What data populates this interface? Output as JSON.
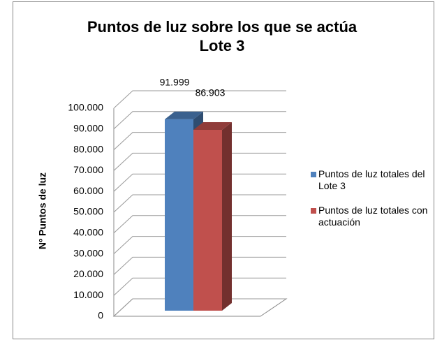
{
  "chart_data": {
    "type": "bar3d",
    "title": [
      "Puntos de luz sobre los que se actúa",
      "Lote 3"
    ],
    "y_label": "Nº Puntos de luz",
    "categories": [
      null
    ],
    "series": [
      {
        "name": "Puntos de luz totales del Lote 3",
        "color": "#4f81bd",
        "values": [
          91999
        ],
        "value_labels": [
          "91.999"
        ]
      },
      {
        "name": "Puntos de luz totales con actuación",
        "color": "#c0504d",
        "values": [
          86903
        ],
        "value_labels": [
          "86.903"
        ]
      }
    ],
    "ylim": [
      0,
      100000
    ],
    "yticks": [
      {
        "value": 0,
        "label": "0"
      },
      {
        "value": 10000,
        "label": "10.000"
      },
      {
        "value": 20000,
        "label": "20.000"
      },
      {
        "value": 30000,
        "label": "30.000"
      },
      {
        "value": 40000,
        "label": "40.000"
      },
      {
        "value": 50000,
        "label": "50.000"
      },
      {
        "value": 60000,
        "label": "60.000"
      },
      {
        "value": 70000,
        "label": "70.000"
      },
      {
        "value": 80000,
        "label": "80.000"
      },
      {
        "value": 90000,
        "label": "90.000"
      },
      {
        "value": 100000,
        "label": "100.000"
      }
    ],
    "grid": true,
    "legend": "right"
  }
}
